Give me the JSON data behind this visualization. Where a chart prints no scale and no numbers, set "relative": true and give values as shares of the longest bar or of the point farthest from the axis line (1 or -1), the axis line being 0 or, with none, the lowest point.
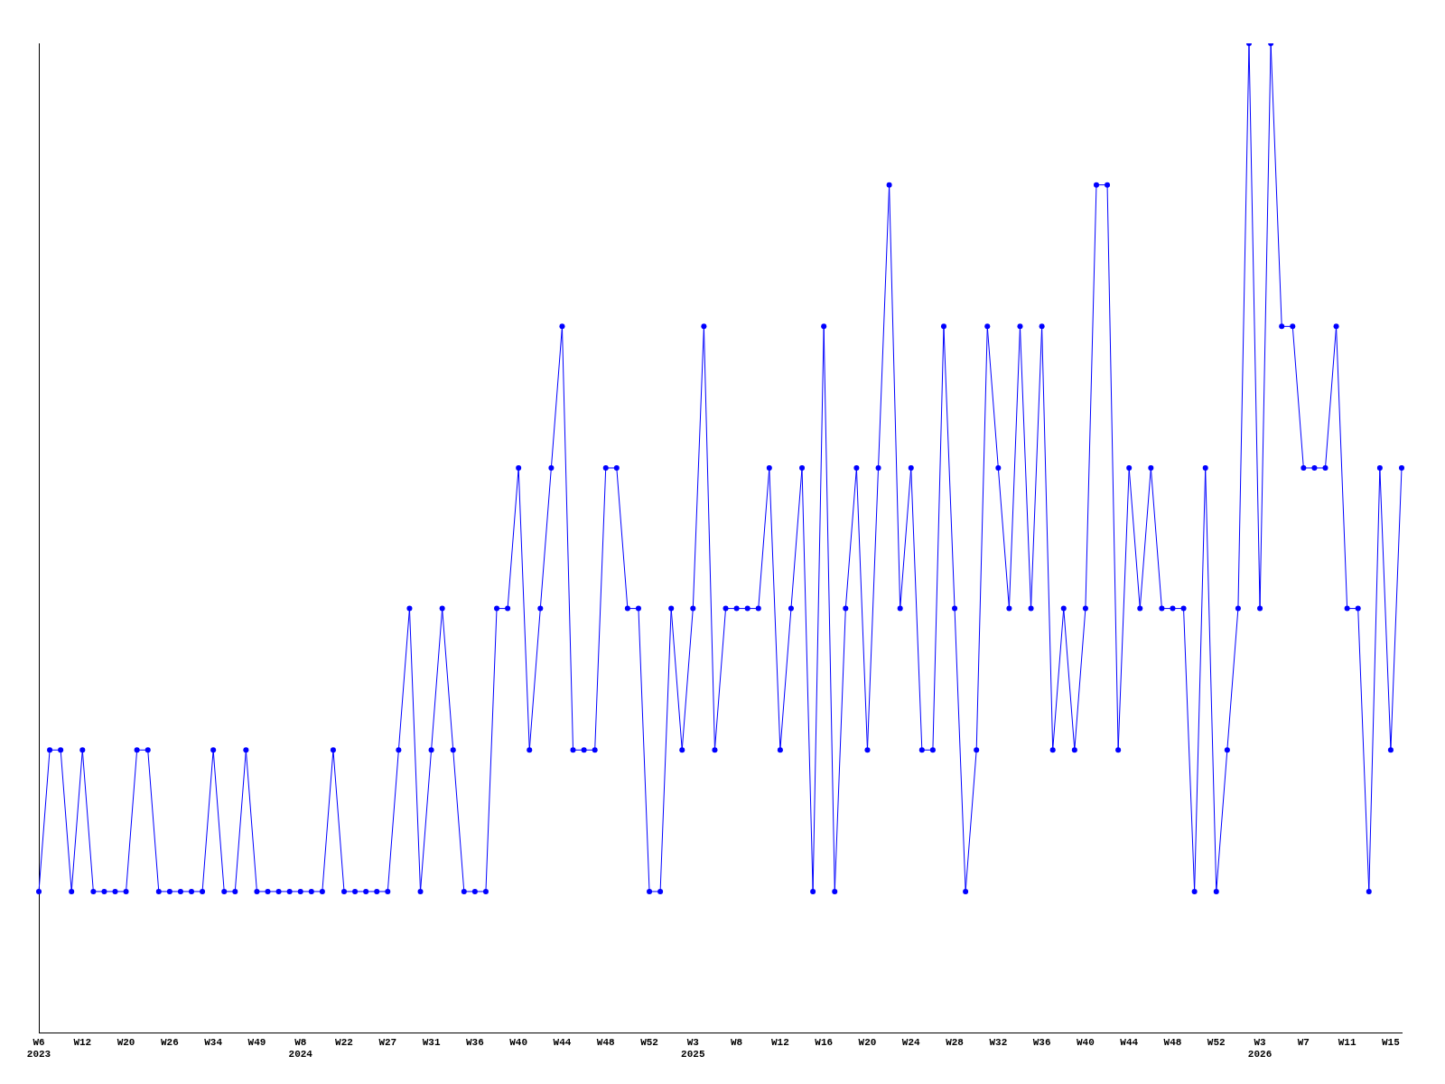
{
  "chart_data": {
    "type": "line",
    "relative": true,
    "marker": "circle",
    "grid": false,
    "legend": false,
    "categories": [
      "W6\n2023",
      null,
      null,
      null,
      "W12",
      null,
      null,
      null,
      "W20",
      null,
      null,
      null,
      "W26",
      null,
      null,
      null,
      "W34",
      null,
      null,
      null,
      "W49",
      null,
      null,
      null,
      "W8\n2024",
      null,
      null,
      null,
      "W22",
      null,
      null,
      null,
      "W27",
      null,
      null,
      null,
      "W31",
      null,
      null,
      null,
      "W36",
      null,
      null,
      null,
      "W40",
      null,
      null,
      null,
      "W44",
      null,
      null,
      null,
      "W48",
      null,
      null,
      null,
      "W52",
      null,
      null,
      null,
      "W3\n2025",
      null,
      null,
      null,
      "W8",
      null,
      null,
      null,
      "W12",
      null,
      null,
      null,
      "W16",
      null,
      null,
      null,
      "W20",
      null,
      null,
      null,
      "W24",
      null,
      null,
      null,
      "W28",
      null,
      null,
      null,
      "W32",
      null,
      null,
      null,
      "W36",
      null,
      null,
      null,
      "W40",
      null,
      null,
      null,
      "W44",
      null,
      null,
      null,
      "W48",
      null,
      null,
      null,
      "W52",
      null,
      null,
      null,
      "W3\n2026",
      null,
      null,
      null,
      "W7",
      null,
      null,
      null,
      "W11",
      null,
      null,
      null,
      "W15",
      null
    ],
    "series": [
      {
        "color": "#0000ff",
        "values": [
          0.143,
          0.286,
          0.286,
          0.143,
          0.286,
          0.143,
          0.143,
          0.143,
          0.143,
          0.286,
          0.286,
          0.143,
          0.143,
          0.143,
          0.143,
          0.143,
          0.286,
          0.143,
          0.143,
          0.286,
          0.143,
          0.143,
          0.143,
          0.143,
          0.143,
          0.143,
          0.143,
          0.286,
          0.143,
          0.143,
          0.143,
          0.143,
          0.143,
          0.286,
          0.429,
          0.143,
          0.286,
          0.429,
          0.286,
          0.143,
          0.143,
          0.143,
          0.429,
          0.429,
          0.571,
          0.286,
          0.429,
          0.571,
          0.714,
          0.286,
          0.286,
          0.286,
          0.571,
          0.571,
          0.429,
          0.429,
          0.143,
          0.143,
          0.429,
          0.286,
          0.429,
          0.714,
          0.286,
          0.429,
          0.429,
          0.429,
          0.429,
          0.571,
          0.286,
          0.429,
          0.571,
          0.143,
          0.714,
          0.143,
          0.429,
          0.571,
          0.286,
          0.571,
          0.857,
          0.429,
          0.571,
          0.286,
          0.286,
          0.714,
          0.429,
          0.143,
          0.286,
          0.714,
          0.571,
          0.429,
          0.714,
          0.429,
          0.714,
          0.286,
          0.429,
          0.286,
          0.429,
          0.857,
          0.857,
          0.286,
          0.571,
          0.429,
          0.571,
          0.429,
          0.429,
          0.429,
          0.143,
          0.571,
          0.143,
          0.286,
          0.429,
          1,
          0.429,
          1,
          0.714,
          0.714,
          0.571,
          0.571,
          0.571,
          0.714,
          0.429,
          0.429,
          0.143,
          0.571,
          0.286,
          0.571
        ]
      }
    ]
  }
}
